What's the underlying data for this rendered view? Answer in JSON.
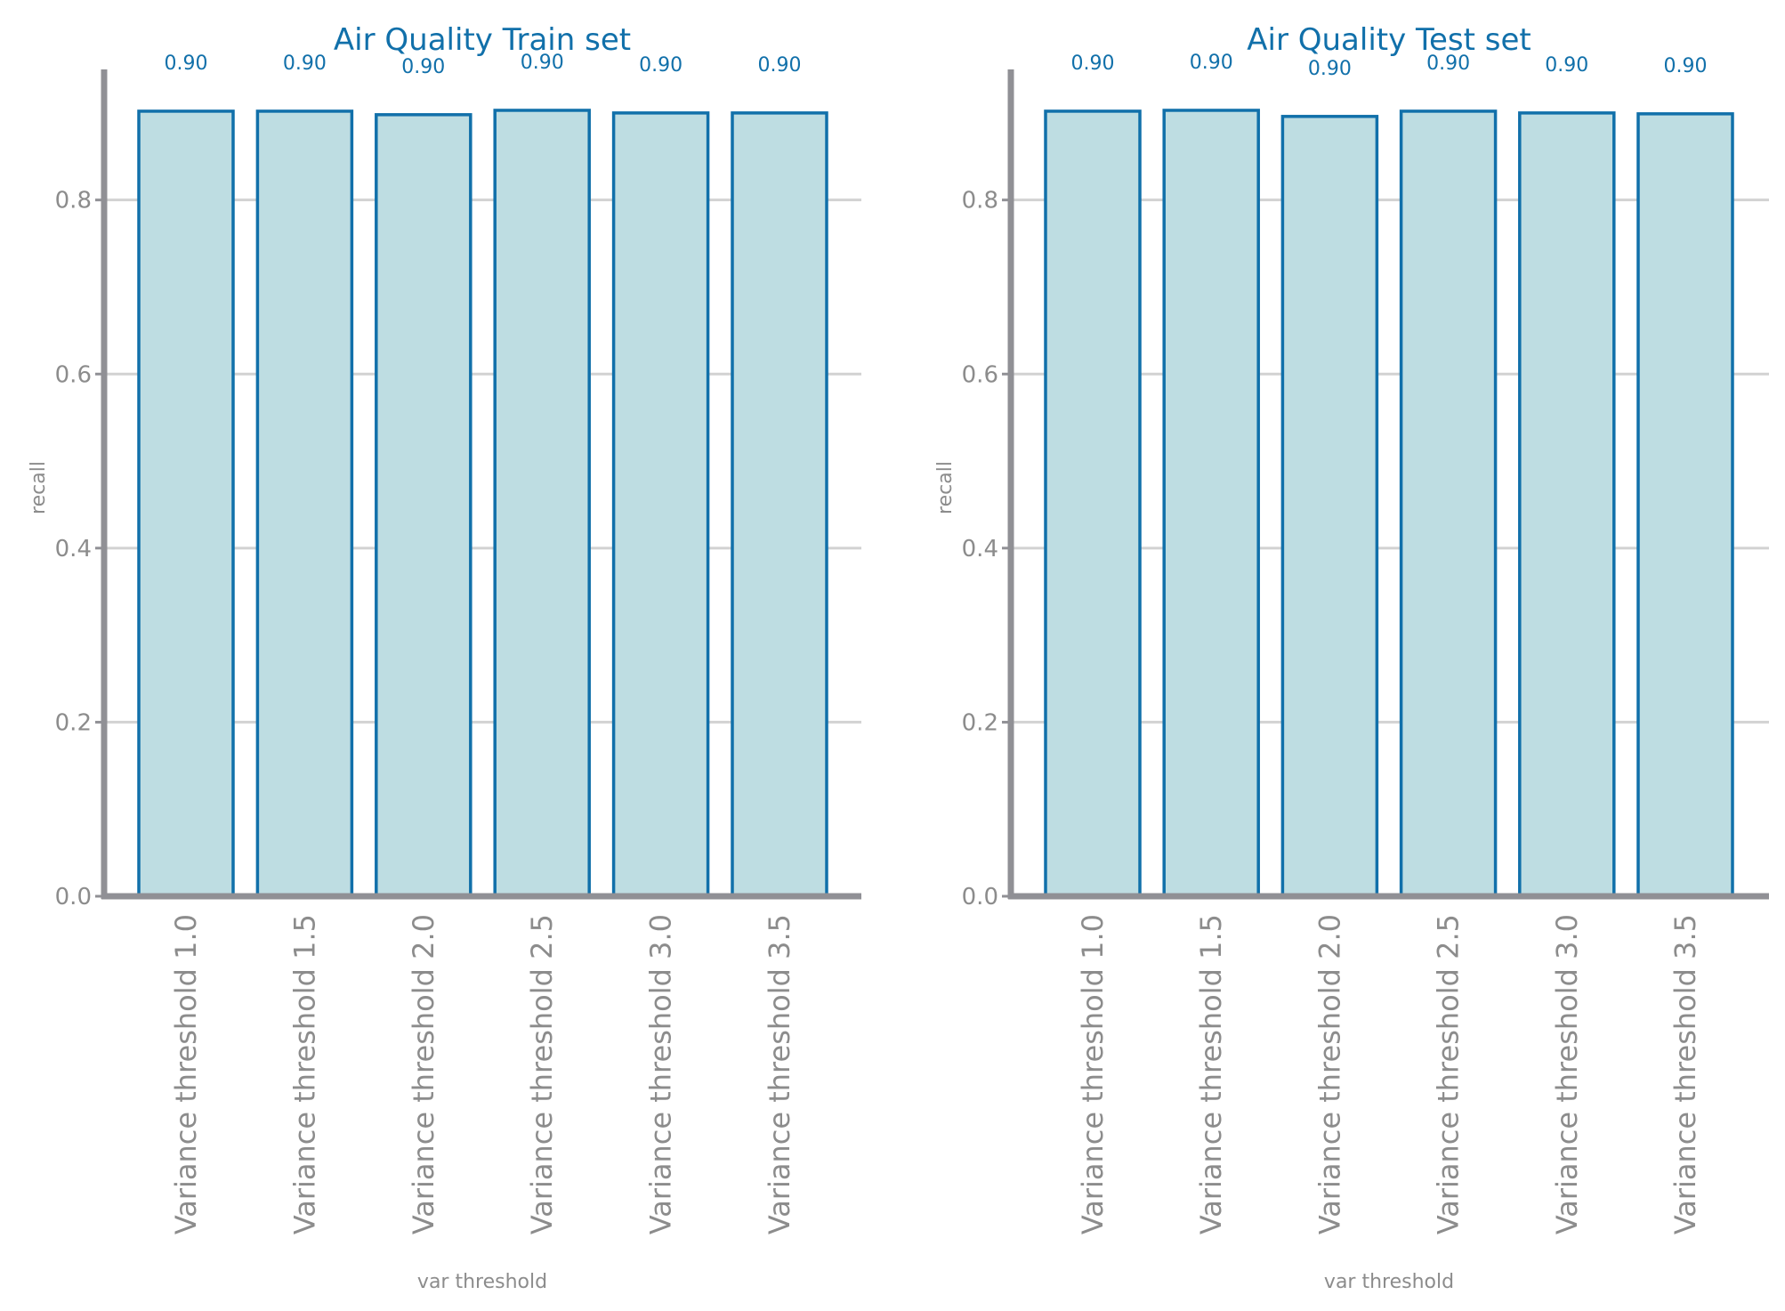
{
  "figure": {
    "colors": {
      "accent": "#1170aa",
      "bar_fill": "#bedde2",
      "axis": "#909095",
      "grid": "#d2d2d2",
      "text": "#8c8c8c"
    }
  },
  "chart_data": [
    {
      "type": "bar",
      "title": "Air Quality Train set",
      "xlabel": "var threshold",
      "ylabel": "recall",
      "ylim": [
        0,
        0.95
      ],
      "yticks": [
        "0.0",
        "0.2",
        "0.4",
        "0.6",
        "0.8"
      ],
      "grid": "horizontal",
      "categories": [
        "Variance threshold 1.0",
        "Variance threshold 1.5",
        "Variance threshold 2.0",
        "Variance threshold 2.5",
        "Variance threshold 3.0",
        "Variance threshold 3.5"
      ],
      "values": [
        0.902,
        0.902,
        0.898,
        0.903,
        0.9,
        0.9
      ],
      "value_labels": [
        "0.90",
        "0.90",
        "0.90",
        "0.90",
        "0.90",
        "0.90"
      ]
    },
    {
      "type": "bar",
      "title": "Air Quality Test set",
      "xlabel": "var threshold",
      "ylabel": "recall",
      "ylim": [
        0,
        0.95
      ],
      "yticks": [
        "0.0",
        "0.2",
        "0.4",
        "0.6",
        "0.8"
      ],
      "grid": "horizontal",
      "categories": [
        "Variance threshold 1.0",
        "Variance threshold 1.5",
        "Variance threshold 2.0",
        "Variance threshold 2.5",
        "Variance threshold 3.0",
        "Variance threshold 3.5"
      ],
      "values": [
        0.902,
        0.903,
        0.896,
        0.902,
        0.9,
        0.899
      ],
      "value_labels": [
        "0.90",
        "0.90",
        "0.90",
        "0.90",
        "0.90",
        "0.90"
      ]
    }
  ]
}
